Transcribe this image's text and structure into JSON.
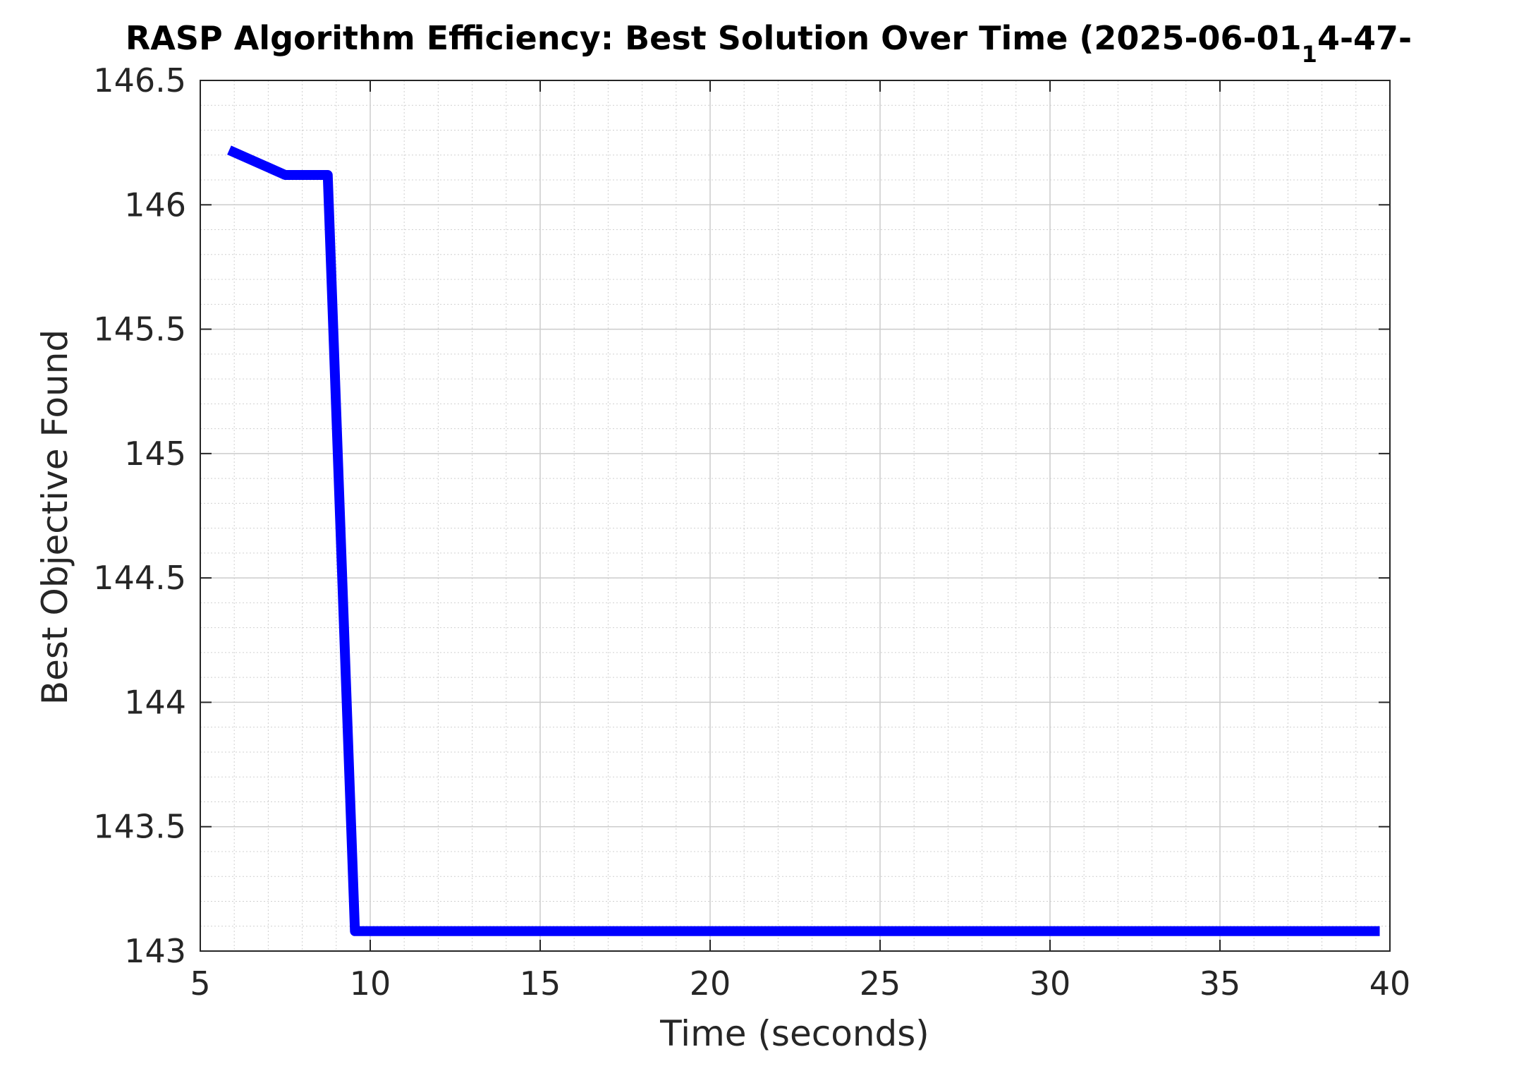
{
  "chart_data": {
    "type": "line",
    "title": "RASP Algorithm Efficiency: Best Solution Over Time (2025-06-01",
    "title_subscript": "1",
    "title_tail": "4-47-",
    "xlabel": "Time (seconds)",
    "ylabel": "Best Objective Found",
    "xlim": [
      5,
      40
    ],
    "ylim": [
      143,
      146.5
    ],
    "x_ticks": [
      "5",
      "10",
      "15",
      "20",
      "25",
      "30",
      "35",
      "40"
    ],
    "y_ticks": [
      "143",
      "143.5",
      "144",
      "144.5",
      "145",
      "145.5",
      "146",
      "146.5"
    ],
    "grid": true,
    "minor_grid": true,
    "legend": "none",
    "series": [
      {
        "color": "#0000FF",
        "x": [
          5.85,
          7.5,
          8.75,
          9.55,
          39.7
        ],
        "y": [
          146.22,
          146.12,
          146.12,
          143.08,
          143.08
        ]
      }
    ]
  }
}
